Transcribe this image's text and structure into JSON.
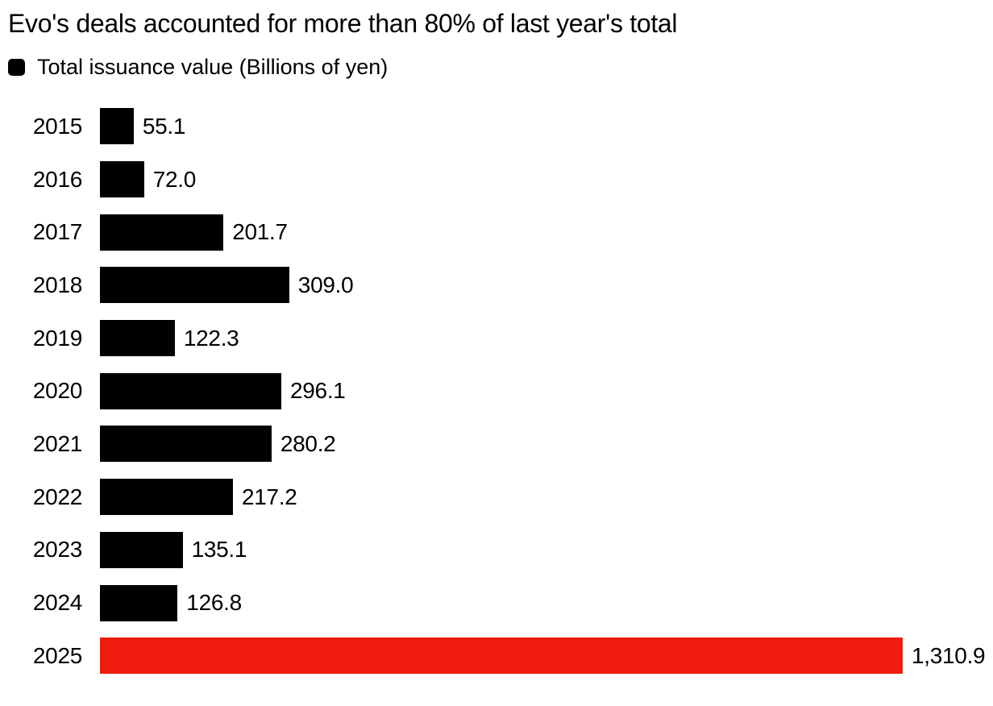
{
  "page": {
    "background": "#ffffff"
  },
  "title": "Evo's deals accounted for more than 80% of last year's total",
  "legend": {
    "label": "Total issuance value (Billions of yen)",
    "marker_color": "#000000"
  },
  "colors": {
    "bar_default": "#000000",
    "bar_highlight": "#f01d0e",
    "text": "#000000",
    "background": "#ffffff"
  },
  "chart_data": {
    "type": "bar",
    "orientation": "horizontal",
    "title": "Evo's deals accounted for more than 80% of last year's total",
    "legend_label": "Total issuance value (Billions of yen)",
    "unit": "Billions of yen",
    "categories": [
      "2015",
      "2016",
      "2017",
      "2018",
      "2019",
      "2020",
      "2021",
      "2022",
      "2023",
      "2024",
      "2025"
    ],
    "values": [
      55.1,
      72.0,
      201.7,
      309.0,
      122.3,
      296.1,
      280.2,
      217.2,
      135.1,
      126.8,
      1310.9
    ],
    "value_labels": [
      "55.1",
      "72.0",
      "201.7",
      "309.0",
      "122.3",
      "296.1",
      "280.2",
      "217.2",
      "135.1",
      "126.8",
      "1,310.9"
    ],
    "highlight_category": "2025",
    "bar_colors": {
      "default": "#000000",
      "highlight": "#f01d0e"
    },
    "xlim": [
      0,
      1310.9
    ],
    "grid": false,
    "axis_ticks": false,
    "legend_position": "top-left",
    "value_labels_position": "end-of-bar"
  }
}
